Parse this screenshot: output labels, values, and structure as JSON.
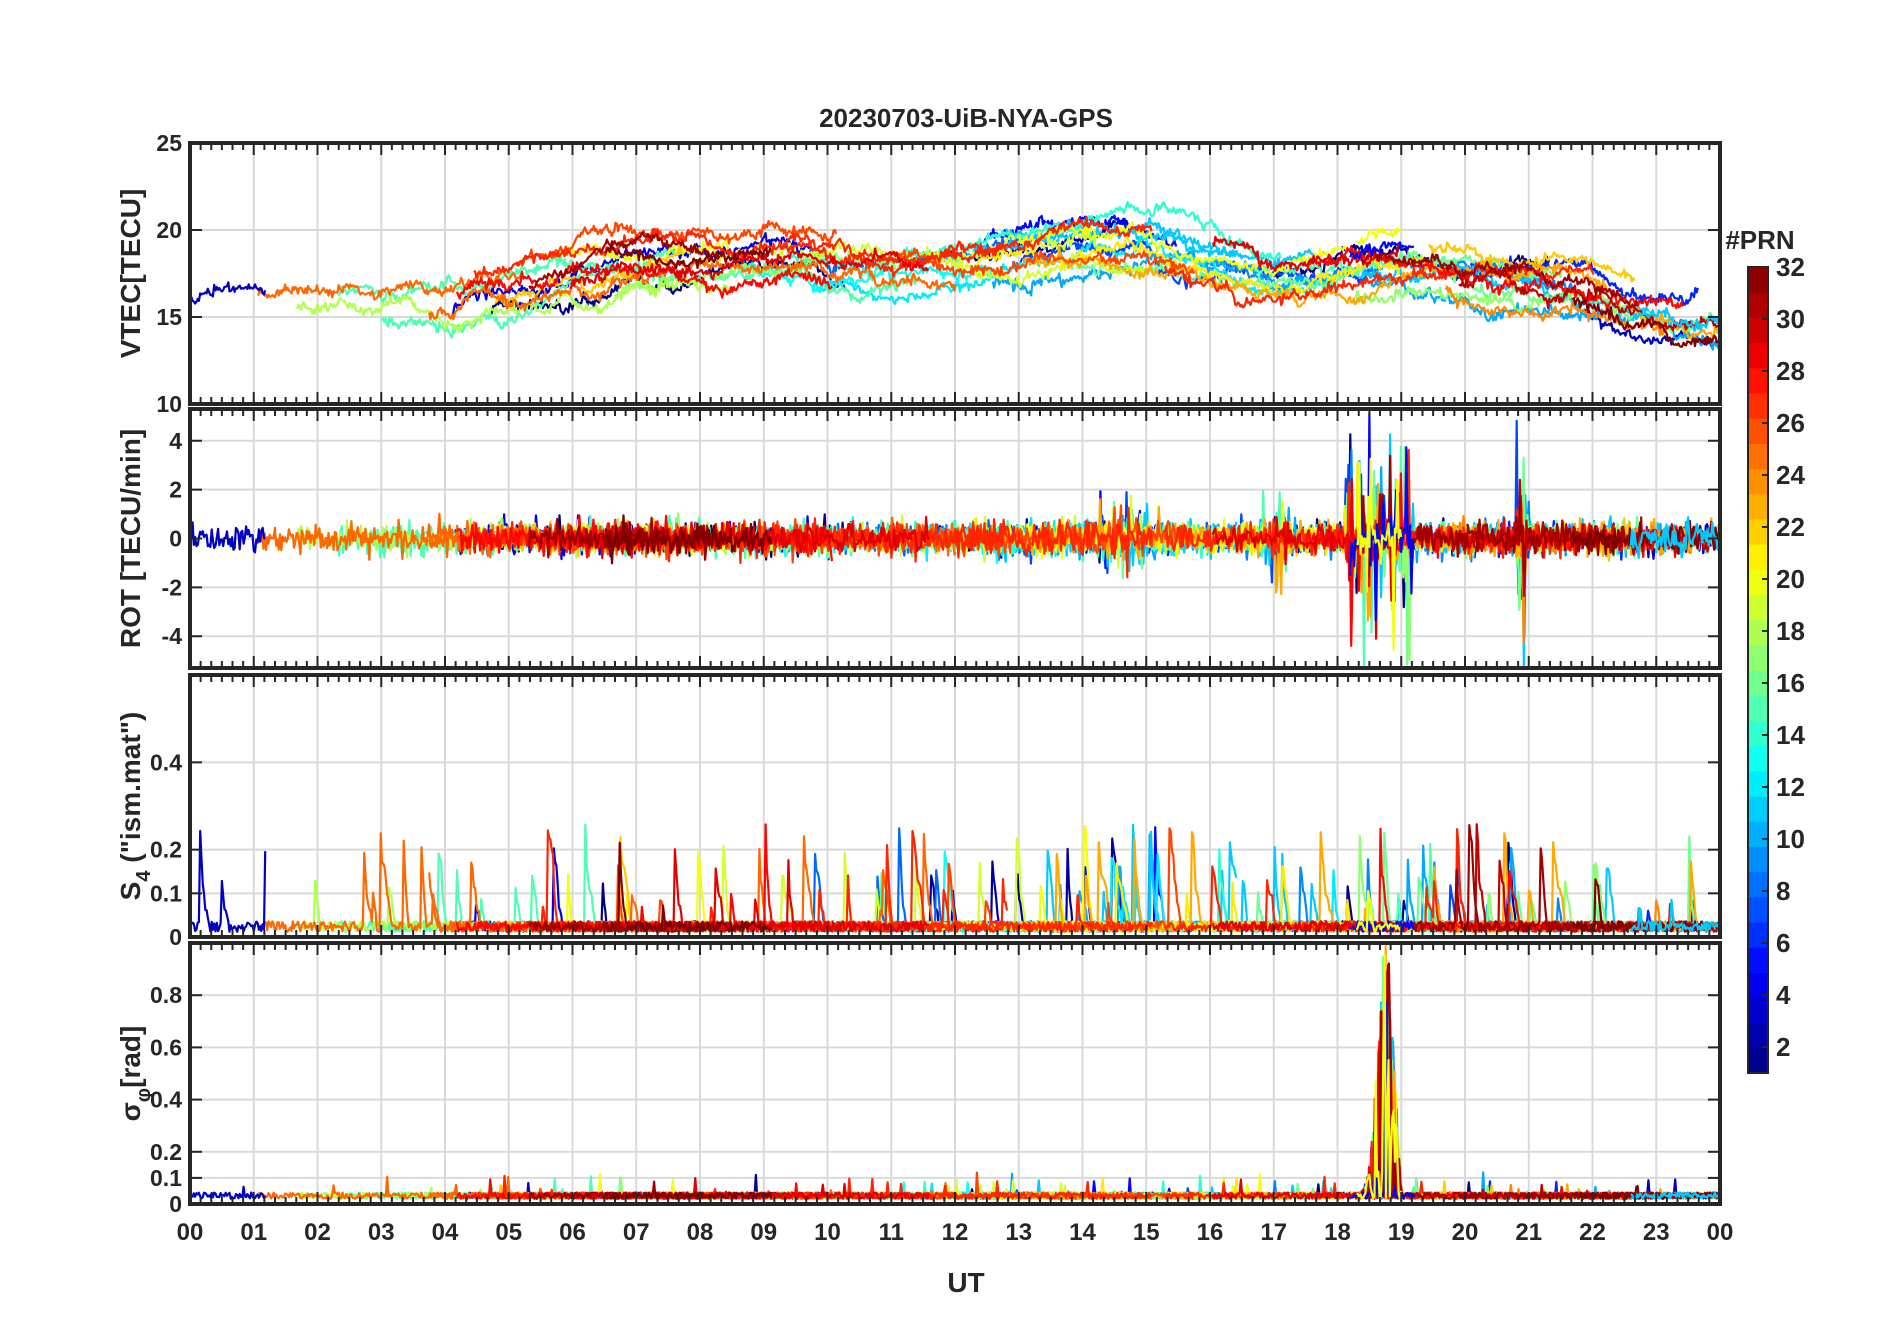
{
  "chart_data": {
    "type": "line",
    "title": "20230703-UiB-NYA-GPS",
    "xlabel": "UT",
    "xlim": [
      0,
      24
    ],
    "x_tick_labels": [
      "00",
      "01",
      "02",
      "03",
      "04",
      "05",
      "06",
      "07",
      "08",
      "09",
      "10",
      "11",
      "12",
      "13",
      "14",
      "15",
      "16",
      "17",
      "18",
      "19",
      "20",
      "21",
      "22",
      "23",
      "00"
    ],
    "series_note": "One trace per GPS satellite PRN (1-32), colored by PRN via jet colormap",
    "panels": [
      {
        "id": "vtec",
        "ylabel": "VTEC[TECU]",
        "ylim": [
          10,
          25
        ],
        "y_ticks": [
          10,
          15,
          20,
          25
        ],
        "y_tick_labels": [
          "10",
          "15",
          "20",
          "25"
        ],
        "trend": {
          "x": [
            0,
            1,
            2,
            3,
            4,
            5,
            6,
            7,
            8,
            9,
            10,
            11,
            12,
            13,
            14,
            15,
            16,
            17,
            18,
            19,
            20,
            21,
            22,
            23,
            24
          ],
          "y": [
            15.5,
            16,
            15.5,
            15.5,
            16,
            16.5,
            17.5,
            18,
            18,
            18,
            18,
            18,
            18,
            18.5,
            19,
            18.8,
            18,
            17,
            17.5,
            18,
            17.5,
            17,
            16.5,
            15.5,
            15
          ]
        },
        "spread": 1.6
      },
      {
        "id": "rot",
        "ylabel": "ROT [TECU/min]",
        "ylim": [
          -5.3,
          5.3
        ],
        "y_ticks": [
          -4,
          -2,
          0,
          2,
          4
        ],
        "y_tick_labels": [
          "-4",
          "-2",
          "0",
          "2",
          "4"
        ],
        "active_intervals": [
          {
            "from": 14.2,
            "to": 15.2,
            "amplitude": 1.5
          },
          {
            "from": 16.8,
            "to": 17.2,
            "amplitude": 2.5
          },
          {
            "from": 18.1,
            "to": 19.2,
            "amplitude": 5
          },
          {
            "from": 20.8,
            "to": 21.0,
            "amplitude": 4.5
          }
        ],
        "base_amplitude": 0.5
      },
      {
        "id": "s4",
        "ylabel": "S4 (\"ism.mat\")",
        "ylabel_main": "S",
        "ylabel_sub": "4",
        "ylabel_rest": " (\"ism.mat\")",
        "ylim": [
          0,
          0.6
        ],
        "y_ticks": [
          0,
          0.1,
          0.2,
          0.4
        ],
        "y_tick_labels": [
          "0",
          "0.1",
          "0.2",
          "0.4"
        ],
        "base_level": 0.03,
        "peak_max": 0.26
      },
      {
        "id": "sigphi",
        "ylabel": "σφ[rad]",
        "ylabel_main": "σ",
        "ylabel_sub": "φ",
        "ylabel_rest": "[rad]",
        "ylim": [
          0,
          1
        ],
        "y_ticks": [
          0,
          0.1,
          0.2,
          0.4,
          0.6,
          0.8
        ],
        "y_tick_labels": [
          "0",
          "0.1",
          "0.2",
          "0.4",
          "0.6",
          "0.8"
        ],
        "base_level": 0.04,
        "event": {
          "from": 18.2,
          "to": 19.0,
          "peak": 1.0,
          "peak_time": 18.75
        }
      }
    ],
    "colorbar": {
      "title": "#PRN",
      "range": [
        1,
        32
      ],
      "ticks": [
        2,
        4,
        6,
        8,
        10,
        12,
        14,
        16,
        18,
        20,
        22,
        24,
        26,
        28,
        30,
        32
      ],
      "tick_labels": [
        "2",
        "4",
        "6",
        "8",
        "10",
        "12",
        "14",
        "16",
        "18",
        "20",
        "22",
        "24",
        "26",
        "28",
        "30",
        "32"
      ]
    },
    "colors": {
      "axis": "#262626",
      "grid": "#d9d9d9",
      "background": "#ffffff"
    }
  }
}
